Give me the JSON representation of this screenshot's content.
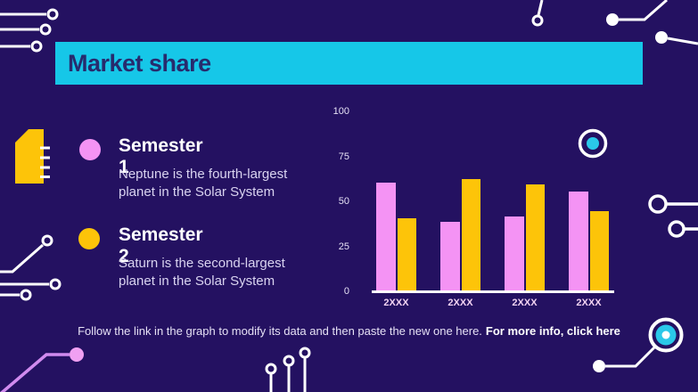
{
  "title": "Market share",
  "legend": {
    "items": [
      {
        "label": "Semester 1",
        "description": "Neptune is the fourth-largest planet in the Solar System",
        "color": "#F493F4"
      },
      {
        "label": "Semester 2",
        "description": "Saturn is the second-largest planet in the Solar System",
        "color": "#FDC409"
      }
    ]
  },
  "chart_data": {
    "type": "bar",
    "title": "Market share",
    "categories": [
      "2XXX",
      "2XXX",
      "2XXX",
      "2XXX"
    ],
    "series": [
      {
        "name": "Semester 1",
        "color": "#F493F4",
        "values": [
          60,
          38,
          41,
          55
        ]
      },
      {
        "name": "Semester 2",
        "color": "#FDC409",
        "values": [
          40,
          62,
          59,
          44
        ]
      }
    ],
    "xlabel": "",
    "ylabel": "",
    "ylim": [
      0,
      100
    ],
    "yticks": [
      0,
      25,
      50,
      75,
      100
    ],
    "grid": false,
    "legend_position": "left"
  },
  "footer": {
    "text": "Follow the link in the graph to modify its data and then paste the new one here.",
    "link_text": "For more info, click here"
  },
  "colors": {
    "background": "#241161",
    "accent_cyan": "#16C7E8",
    "accent_pink": "#F493F4",
    "accent_yellow": "#FDC409",
    "title_text": "#272B6D",
    "body_text": "#D9D3F0",
    "axis_text": "#E6E1F5",
    "trace_white": "#FFFFFF",
    "trace_purple": "#D18BEF"
  }
}
